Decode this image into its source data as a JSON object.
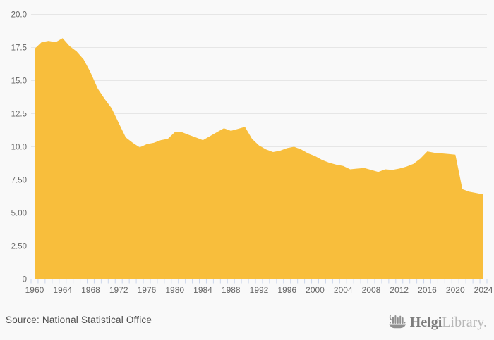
{
  "chart_data": {
    "type": "area",
    "title": "",
    "xlabel": "",
    "ylabel": "",
    "legend": false,
    "grid": true,
    "ylim": [
      0,
      20
    ],
    "x": [
      1960,
      1961,
      1962,
      1963,
      1964,
      1965,
      1966,
      1967,
      1968,
      1969,
      1970,
      1971,
      1972,
      1973,
      1974,
      1975,
      1976,
      1977,
      1978,
      1979,
      1980,
      1981,
      1982,
      1983,
      1984,
      1985,
      1986,
      1987,
      1988,
      1989,
      1990,
      1991,
      1992,
      1993,
      1994,
      1995,
      1996,
      1997,
      1998,
      1999,
      2000,
      2001,
      2002,
      2003,
      2004,
      2005,
      2006,
      2007,
      2008,
      2009,
      2010,
      2011,
      2012,
      2013,
      2014,
      2015,
      2016,
      2017,
      2018,
      2019,
      2020,
      2021,
      2022,
      2023,
      2024
    ],
    "values": [
      17.4,
      17.9,
      18.0,
      17.9,
      18.2,
      17.6,
      17.2,
      16.6,
      15.6,
      14.4,
      13.6,
      12.9,
      11.8,
      10.7,
      10.3,
      9.95,
      10.2,
      10.3,
      10.5,
      10.6,
      11.1,
      11.1,
      10.9,
      10.7,
      10.5,
      10.8,
      11.1,
      11.4,
      11.2,
      11.35,
      11.5,
      10.6,
      10.1,
      9.8,
      9.6,
      9.7,
      9.9,
      10.0,
      9.8,
      9.5,
      9.3,
      9.0,
      8.8,
      8.65,
      8.55,
      8.3,
      8.35,
      8.4,
      8.25,
      8.1,
      8.3,
      8.25,
      8.35,
      8.5,
      8.7,
      9.1,
      9.65,
      9.55,
      9.5,
      9.45,
      9.4,
      6.8,
      6.6,
      6.5,
      6.4
    ],
    "y_ticks": [
      {
        "value": 0,
        "label": "0"
      },
      {
        "value": 2.5,
        "label": "2.50"
      },
      {
        "value": 5,
        "label": "5.00"
      },
      {
        "value": 7.5,
        "label": "7.50"
      },
      {
        "value": 10,
        "label": "10.0"
      },
      {
        "value": 12.5,
        "label": "12.5"
      },
      {
        "value": 15,
        "label": "15.0"
      },
      {
        "value": 17.5,
        "label": "17.5"
      },
      {
        "value": 20,
        "label": "20.0"
      }
    ],
    "x_tick_labels": [
      "1960",
      "1964",
      "1968",
      "1972",
      "1976",
      "1980",
      "1984",
      "1988",
      "1992",
      "1996",
      "2000",
      "2004",
      "2008",
      "2012",
      "2016",
      "2020",
      "2024"
    ]
  },
  "colors": {
    "series": "#f8be3c",
    "gridline": "#e6e6e6",
    "axis": "#ccd6eb",
    "tick": "#ccd6eb",
    "axis_label": "#666666",
    "source_text": "#4d4d4d",
    "logo_dark": "#7d7d7d",
    "logo_light": "#b7b7b7",
    "background": "#f9f9f9"
  },
  "footer": {
    "source_text": "Source: National Statistical Office",
    "logo": {
      "bold": "Helgi",
      "light": "Library."
    }
  }
}
